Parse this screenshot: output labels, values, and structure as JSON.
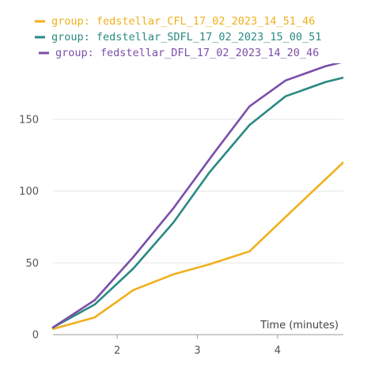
{
  "chart_data": {
    "type": "line",
    "xlabel": "Time (minutes)",
    "ylabel": "",
    "xlim": [
      1.2,
      4.82
    ],
    "ylim": [
      0,
      200
    ],
    "xticks": [
      2,
      3,
      4
    ],
    "yticks": [
      0,
      50,
      100,
      150
    ],
    "grid": "horizontal",
    "legend_position": "top",
    "series": [
      {
        "name": "group: fedstellar_CFL_17_02_2023_14_51_46",
        "color": "#f0b01c",
        "x": [
          1.2,
          1.72,
          2.2,
          2.7,
          3.15,
          3.65,
          4.1,
          4.82
        ],
        "y": [
          4,
          12,
          31,
          42,
          49,
          58,
          82,
          120
        ]
      },
      {
        "name": "group: fedstellar_SDFL_17_02_2023_15_00_51",
        "color": "#2a8a82",
        "x": [
          1.2,
          1.72,
          2.2,
          2.7,
          3.15,
          3.65,
          4.1,
          4.6,
          4.82
        ],
        "y": [
          5,
          21,
          46,
          78,
          113,
          146,
          166,
          176,
          179
        ]
      },
      {
        "name": "group: fedstellar_DFL_17_02_2023_14_20_46",
        "color": "#7b4fa8",
        "x": [
          1.2,
          1.72,
          2.2,
          2.7,
          3.2,
          3.65,
          4.1,
          4.6,
          4.82
        ],
        "y": [
          5,
          24,
          54,
          88,
          126,
          159,
          177,
          187,
          190
        ]
      }
    ]
  }
}
